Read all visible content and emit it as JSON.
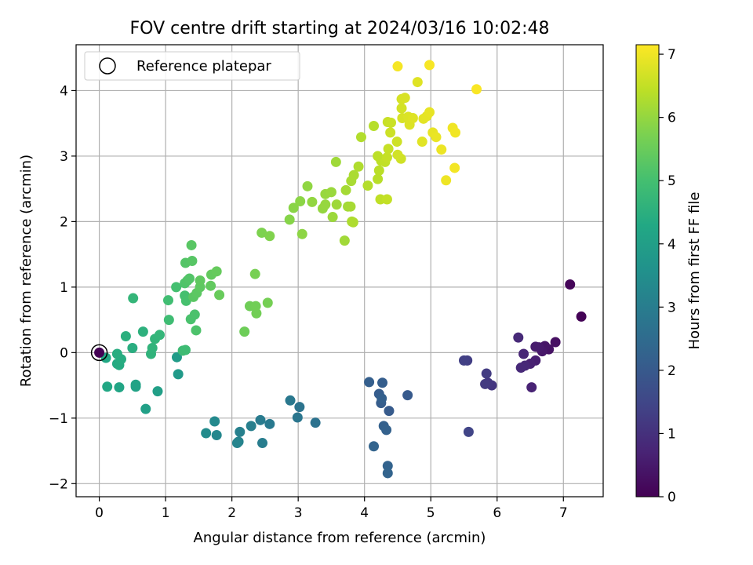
{
  "chart_data": {
    "type": "scatter",
    "title": "FOV centre drift starting at 2024/03/16 10:02:48",
    "xlabel": "Angular distance from reference (arcmin)",
    "ylabel": "Rotation from reference (arcmin)",
    "xlim": [
      -0.35,
      7.6
    ],
    "ylim": [
      -2.2,
      4.7
    ],
    "xticks": [
      0,
      1,
      2,
      3,
      4,
      5,
      6,
      7
    ],
    "yticks": [
      -2,
      -1,
      0,
      1,
      2,
      3,
      4
    ],
    "grid": true,
    "legend": {
      "placement": "top-left",
      "entries": [
        "Reference platepar"
      ]
    },
    "reference_point": {
      "x": 0,
      "y": 0
    },
    "colorbar": {
      "label": "Hours from first FF file",
      "colormap": "viridis",
      "range": [
        0,
        7.15
      ],
      "ticks": [
        0,
        1,
        2,
        3,
        4,
        5,
        6,
        7
      ]
    },
    "points": [
      {
        "x": 7.27,
        "y": 0.55,
        "h": 0.05
      },
      {
        "x": 7.1,
        "y": 1.04,
        "h": 0.1
      },
      {
        "x": 6.88,
        "y": 0.16,
        "h": 0.3
      },
      {
        "x": 6.78,
        "y": 0.05,
        "h": 0.35
      },
      {
        "x": 6.72,
        "y": 0.1,
        "h": 0.4
      },
      {
        "x": 6.68,
        "y": 0.02,
        "h": 0.45
      },
      {
        "x": 6.63,
        "y": 0.08,
        "h": 0.5
      },
      {
        "x": 6.58,
        "y": 0.09,
        "h": 0.55
      },
      {
        "x": 6.58,
        "y": -0.12,
        "h": 0.6
      },
      {
        "x": 6.5,
        "y": -0.17,
        "h": 0.65
      },
      {
        "x": 6.52,
        "y": -0.53,
        "h": 0.7
      },
      {
        "x": 6.4,
        "y": -0.02,
        "h": 0.75
      },
      {
        "x": 6.42,
        "y": -0.2,
        "h": 0.8
      },
      {
        "x": 6.36,
        "y": -0.23,
        "h": 0.82
      },
      {
        "x": 6.32,
        "y": 0.23,
        "h": 0.85
      },
      {
        "x": 5.92,
        "y": -0.5,
        "h": 1.1
      },
      {
        "x": 5.86,
        "y": -0.46,
        "h": 1.15
      },
      {
        "x": 5.82,
        "y": -0.48,
        "h": 1.2
      },
      {
        "x": 5.84,
        "y": -0.32,
        "h": 1.25
      },
      {
        "x": 5.55,
        "y": -0.12,
        "h": 1.3
      },
      {
        "x": 5.5,
        "y": -0.12,
        "h": 1.35
      },
      {
        "x": 5.57,
        "y": -1.21,
        "h": 1.45
      },
      {
        "x": 4.65,
        "y": -0.65,
        "h": 2.0
      },
      {
        "x": 4.37,
        "y": -0.89,
        "h": 2.05
      },
      {
        "x": 4.25,
        "y": -0.77,
        "h": 2.08
      },
      {
        "x": 4.22,
        "y": -0.63,
        "h": 2.1
      },
      {
        "x": 4.27,
        "y": -0.46,
        "h": 2.12
      },
      {
        "x": 4.07,
        "y": -0.45,
        "h": 2.15
      },
      {
        "x": 4.26,
        "y": -0.7,
        "h": 2.18
      },
      {
        "x": 4.29,
        "y": -1.12,
        "h": 2.2
      },
      {
        "x": 4.33,
        "y": -1.18,
        "h": 2.22
      },
      {
        "x": 4.35,
        "y": -1.73,
        "h": 2.25
      },
      {
        "x": 4.35,
        "y": -1.84,
        "h": 2.28
      },
      {
        "x": 4.14,
        "y": -1.43,
        "h": 2.3
      },
      {
        "x": 3.26,
        "y": -1.07,
        "h": 2.7
      },
      {
        "x": 3.02,
        "y": -0.83,
        "h": 2.75
      },
      {
        "x": 2.99,
        "y": -0.99,
        "h": 2.8
      },
      {
        "x": 2.88,
        "y": -0.73,
        "h": 2.85
      },
      {
        "x": 2.57,
        "y": -1.09,
        "h": 2.9
      },
      {
        "x": 2.43,
        "y": -1.03,
        "h": 2.95
      },
      {
        "x": 2.46,
        "y": -1.38,
        "h": 3.0
      },
      {
        "x": 2.29,
        "y": -1.12,
        "h": 3.05
      },
      {
        "x": 2.12,
        "y": -1.21,
        "h": 3.1
      },
      {
        "x": 2.1,
        "y": -1.36,
        "h": 3.15
      },
      {
        "x": 2.08,
        "y": -1.38,
        "h": 3.2
      },
      {
        "x": 1.77,
        "y": -1.26,
        "h": 3.3
      },
      {
        "x": 1.74,
        "y": -1.05,
        "h": 3.35
      },
      {
        "x": 1.61,
        "y": -1.23,
        "h": 3.4
      },
      {
        "x": 1.19,
        "y": -0.33,
        "h": 3.85
      },
      {
        "x": 1.17,
        "y": -0.07,
        "h": 3.9
      },
      {
        "x": 0.88,
        "y": -0.59,
        "h": 4.0
      },
      {
        "x": 0.7,
        "y": -0.86,
        "h": 4.05
      },
      {
        "x": 0.55,
        "y": -0.52,
        "h": 4.1
      },
      {
        "x": 0.55,
        "y": -0.49,
        "h": 4.15
      },
      {
        "x": 0.3,
        "y": -0.53,
        "h": 4.2
      },
      {
        "x": 0.12,
        "y": -0.52,
        "h": 4.25
      },
      {
        "x": 0.1,
        "y": -0.08,
        "h": 4.3
      },
      {
        "x": 0.27,
        "y": -0.17,
        "h": 4.35
      },
      {
        "x": 0.3,
        "y": -0.19,
        "h": 4.38
      },
      {
        "x": 0.33,
        "y": -0.1,
        "h": 4.4
      },
      {
        "x": 0.27,
        "y": -0.02,
        "h": 4.42
      },
      {
        "x": 0.5,
        "y": 0.07,
        "h": 4.45
      },
      {
        "x": 0.4,
        "y": 0.25,
        "h": 4.5
      },
      {
        "x": 0.66,
        "y": 0.32,
        "h": 4.55
      },
      {
        "x": 0.78,
        "y": -0.02,
        "h": 4.6
      },
      {
        "x": 0.8,
        "y": 0.07,
        "h": 4.62
      },
      {
        "x": 0.84,
        "y": 0.21,
        "h": 4.65
      },
      {
        "x": 0.91,
        "y": 0.27,
        "h": 4.68
      },
      {
        "x": 0.51,
        "y": 0.83,
        "h": 4.7
      },
      {
        "x": 1.26,
        "y": 0.03,
        "h": 4.85
      },
      {
        "x": 1.3,
        "y": 0.04,
        "h": 4.88
      },
      {
        "x": 1.05,
        "y": 0.5,
        "h": 4.9
      },
      {
        "x": 1.04,
        "y": 0.8,
        "h": 4.95
      },
      {
        "x": 1.16,
        "y": 1.0,
        "h": 5.0
      },
      {
        "x": 1.29,
        "y": 0.87,
        "h": 5.02
      },
      {
        "x": 1.31,
        "y": 0.79,
        "h": 5.05
      },
      {
        "x": 1.38,
        "y": 0.51,
        "h": 5.08
      },
      {
        "x": 1.44,
        "y": 0.58,
        "h": 5.1
      },
      {
        "x": 1.46,
        "y": 0.34,
        "h": 5.12
      },
      {
        "x": 1.29,
        "y": 1.06,
        "h": 5.15
      },
      {
        "x": 1.33,
        "y": 1.1,
        "h": 5.18
      },
      {
        "x": 1.36,
        "y": 1.13,
        "h": 5.2
      },
      {
        "x": 1.3,
        "y": 1.37,
        "h": 5.22
      },
      {
        "x": 1.4,
        "y": 1.4,
        "h": 5.25
      },
      {
        "x": 1.39,
        "y": 1.64,
        "h": 5.28
      },
      {
        "x": 1.42,
        "y": 0.85,
        "h": 5.3
      },
      {
        "x": 1.47,
        "y": 0.91,
        "h": 5.32
      },
      {
        "x": 1.52,
        "y": 1.0,
        "h": 5.35
      },
      {
        "x": 1.52,
        "y": 1.1,
        "h": 5.38
      },
      {
        "x": 1.68,
        "y": 1.02,
        "h": 5.4
      },
      {
        "x": 1.69,
        "y": 1.19,
        "h": 5.42
      },
      {
        "x": 1.77,
        "y": 1.24,
        "h": 5.45
      },
      {
        "x": 1.81,
        "y": 0.88,
        "h": 5.48
      },
      {
        "x": 2.19,
        "y": 0.32,
        "h": 5.55
      },
      {
        "x": 2.27,
        "y": 0.71,
        "h": 5.58
      },
      {
        "x": 2.36,
        "y": 0.71,
        "h": 5.6
      },
      {
        "x": 2.37,
        "y": 0.6,
        "h": 5.62
      },
      {
        "x": 2.54,
        "y": 0.76,
        "h": 5.65
      },
      {
        "x": 2.35,
        "y": 1.2,
        "h": 5.68
      },
      {
        "x": 2.45,
        "y": 1.83,
        "h": 5.75
      },
      {
        "x": 2.57,
        "y": 1.78,
        "h": 5.78
      },
      {
        "x": 2.87,
        "y": 2.03,
        "h": 5.85
      },
      {
        "x": 2.93,
        "y": 2.21,
        "h": 5.88
      },
      {
        "x": 3.03,
        "y": 2.31,
        "h": 5.9
      },
      {
        "x": 3.06,
        "y": 1.81,
        "h": 5.92
      },
      {
        "x": 3.14,
        "y": 2.54,
        "h": 5.95
      },
      {
        "x": 3.21,
        "y": 2.3,
        "h": 5.98
      },
      {
        "x": 3.37,
        "y": 2.2,
        "h": 6.0
      },
      {
        "x": 3.41,
        "y": 2.26,
        "h": 6.02
      },
      {
        "x": 3.41,
        "y": 2.42,
        "h": 6.04
      },
      {
        "x": 3.5,
        "y": 2.45,
        "h": 6.06
      },
      {
        "x": 3.52,
        "y": 2.07,
        "h": 6.08
      },
      {
        "x": 3.58,
        "y": 2.26,
        "h": 6.1
      },
      {
        "x": 3.57,
        "y": 2.91,
        "h": 6.12
      },
      {
        "x": 3.7,
        "y": 1.71,
        "h": 6.14
      },
      {
        "x": 3.75,
        "y": 2.23,
        "h": 6.16
      },
      {
        "x": 3.72,
        "y": 2.48,
        "h": 6.18
      },
      {
        "x": 3.79,
        "y": 2.23,
        "h": 6.2
      },
      {
        "x": 3.8,
        "y": 2.62,
        "h": 6.22
      },
      {
        "x": 3.84,
        "y": 2.71,
        "h": 6.24
      },
      {
        "x": 3.81,
        "y": 2.0,
        "h": 6.26
      },
      {
        "x": 3.83,
        "y": 1.99,
        "h": 6.28
      },
      {
        "x": 3.91,
        "y": 2.84,
        "h": 6.3
      },
      {
        "x": 3.95,
        "y": 3.29,
        "h": 6.32
      },
      {
        "x": 4.05,
        "y": 2.55,
        "h": 6.34
      },
      {
        "x": 4.14,
        "y": 3.46,
        "h": 6.36
      },
      {
        "x": 4.2,
        "y": 2.65,
        "h": 6.38
      },
      {
        "x": 4.22,
        "y": 2.78,
        "h": 6.4
      },
      {
        "x": 4.2,
        "y": 3.0,
        "h": 6.42
      },
      {
        "x": 4.25,
        "y": 2.93,
        "h": 6.44
      },
      {
        "x": 4.24,
        "y": 2.34,
        "h": 6.46
      },
      {
        "x": 4.31,
        "y": 2.91,
        "h": 6.48
      },
      {
        "x": 4.34,
        "y": 2.34,
        "h": 6.5
      },
      {
        "x": 4.34,
        "y": 2.98,
        "h": 6.52
      },
      {
        "x": 4.36,
        "y": 3.11,
        "h": 6.54
      },
      {
        "x": 4.35,
        "y": 3.52,
        "h": 6.56
      },
      {
        "x": 4.4,
        "y": 3.51,
        "h": 6.58
      },
      {
        "x": 4.39,
        "y": 3.36,
        "h": 6.6
      },
      {
        "x": 4.49,
        "y": 3.22,
        "h": 6.62
      },
      {
        "x": 4.55,
        "y": 2.96,
        "h": 6.64
      },
      {
        "x": 4.5,
        "y": 3.02,
        "h": 6.66
      },
      {
        "x": 4.56,
        "y": 3.73,
        "h": 6.68
      },
      {
        "x": 4.56,
        "y": 3.87,
        "h": 6.7
      },
      {
        "x": 4.57,
        "y": 3.58,
        "h": 6.72
      },
      {
        "x": 4.61,
        "y": 3.89,
        "h": 6.74
      },
      {
        "x": 4.66,
        "y": 3.6,
        "h": 6.76
      },
      {
        "x": 4.68,
        "y": 3.48,
        "h": 6.78
      },
      {
        "x": 4.73,
        "y": 3.58,
        "h": 6.8
      },
      {
        "x": 4.8,
        "y": 4.13,
        "h": 6.82
      },
      {
        "x": 4.87,
        "y": 3.22,
        "h": 6.84
      },
      {
        "x": 4.89,
        "y": 3.57,
        "h": 6.86
      },
      {
        "x": 4.94,
        "y": 3.61,
        "h": 6.88
      },
      {
        "x": 4.98,
        "y": 3.67,
        "h": 6.9
      },
      {
        "x": 5.03,
        "y": 3.36,
        "h": 6.92
      },
      {
        "x": 5.08,
        "y": 3.29,
        "h": 6.94
      },
      {
        "x": 5.16,
        "y": 3.1,
        "h": 6.96
      },
      {
        "x": 5.23,
        "y": 2.63,
        "h": 6.98
      },
      {
        "x": 5.33,
        "y": 3.43,
        "h": 7.0
      },
      {
        "x": 5.37,
        "y": 3.36,
        "h": 7.02
      },
      {
        "x": 5.36,
        "y": 2.82,
        "h": 7.04
      },
      {
        "x": 4.5,
        "y": 4.37,
        "h": 7.06
      },
      {
        "x": 4.98,
        "y": 4.39,
        "h": 7.08
      },
      {
        "x": 5.69,
        "y": 4.02,
        "h": 7.1
      },
      {
        "x": 0.0,
        "y": 0.0,
        "h": 0.0
      }
    ]
  }
}
